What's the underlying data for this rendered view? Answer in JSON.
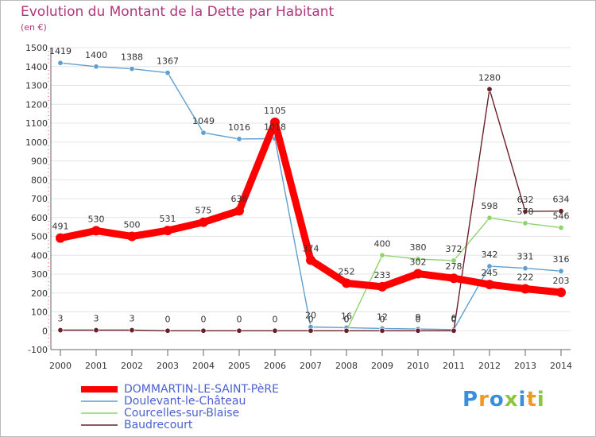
{
  "chart_data": {
    "type": "line",
    "title": "Evolution du Montant de la Dette par Habitant",
    "subtitle": "(en €)",
    "x": [
      "2000",
      "2001",
      "2002",
      "2003",
      "2004",
      "2005",
      "2006",
      "2007",
      "2008",
      "2009",
      "2010",
      "2011",
      "2012",
      "2013",
      "2014"
    ],
    "yticks": [
      "-100",
      "0",
      "100",
      "200",
      "300",
      "400",
      "500",
      "600",
      "700",
      "800",
      "900",
      "1000",
      "1100",
      "1200",
      "1300",
      "1400",
      "1500"
    ],
    "ylim": [
      -100,
      1500
    ],
    "grid": "y",
    "legend_placement": "bottom-left",
    "series": [
      {
        "name": "DOMMARTIN-LE-SAINT-PèRE",
        "color": "#ff0000",
        "values": [
          491,
          530,
          500,
          531,
          575,
          636,
          1105,
          374,
          252,
          233,
          302,
          278,
          245,
          222,
          203
        ],
        "labels": [
          "491",
          "530",
          "500",
          "531",
          "575",
          "636",
          "1105",
          "374",
          "252",
          "233",
          "302",
          "278",
          "245",
          "222",
          "203"
        ]
      },
      {
        "name": "Doulevant-le-Château",
        "color": "#5e9fcf",
        "values": [
          1419,
          1400,
          1388,
          1367,
          1049,
          1016,
          1018,
          20,
          16,
          12,
          9,
          6,
          342,
          331,
          316
        ],
        "labels": [
          "1419",
          "1400",
          "1388",
          "1367",
          "1049",
          "1016",
          "1018",
          "20",
          "16",
          "12",
          "9",
          "6",
          "342",
          "331",
          "316"
        ]
      },
      {
        "name": "Courcelles-sur-Blaise",
        "color": "#8ed36b",
        "values": [
          null,
          null,
          null,
          null,
          null,
          null,
          null,
          null,
          0,
          400,
          380,
          372,
          598,
          570,
          546
        ],
        "labels": [
          "",
          "",
          "",
          "",
          "",
          "",
          "",
          "",
          "0",
          "400",
          "380",
          "372",
          "598",
          "570",
          "546"
        ]
      },
      {
        "name": "Baudrecourt",
        "color": "#6b1f28",
        "values": [
          3,
          3,
          3,
          0,
          0,
          0,
          0,
          0,
          0,
          0,
          0,
          0,
          1280,
          632,
          634
        ],
        "labels": [
          "3",
          "3",
          "3",
          "0",
          "0",
          "0",
          "0",
          "0",
          "0",
          "0",
          "0",
          "0",
          "1280",
          "632",
          "634"
        ]
      }
    ]
  },
  "logo": {
    "letters": [
      "P",
      "r",
      "o",
      "x",
      "i",
      "t",
      "i"
    ],
    "colors": [
      "#3a8fd8",
      "#f09a1c",
      "#3a8fd8",
      "#8cc63f",
      "#3a8fd8",
      "#f09a1c",
      "#8cc63f"
    ]
  }
}
